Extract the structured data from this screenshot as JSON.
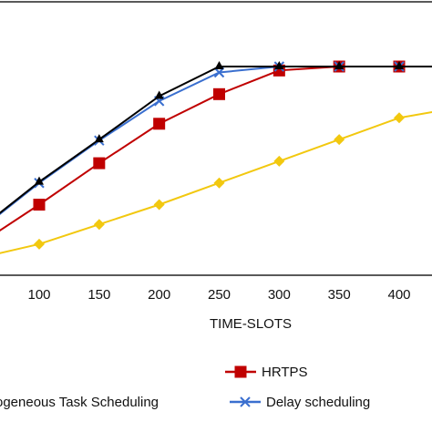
{
  "chart_data": {
    "type": "line",
    "xlabel": "TIME-SLOTS",
    "ylabel": "",
    "title": "",
    "xlim": [
      50,
      475
    ],
    "ylim": [
      0.0,
      1.0
    ],
    "x_ticks": [
      100,
      150,
      200,
      250,
      300,
      350,
      400
    ],
    "grid": false,
    "legend_placement": "bottom",
    "series": [
      {
        "name": "",
        "color": "#000000",
        "marker": "none",
        "x": [
          50,
          100,
          150,
          200,
          250,
          300,
          350,
          400,
          475
        ],
        "y": [
          0.145,
          0.385,
          0.6,
          0.82,
          0.97,
          0.97,
          0.97,
          0.97,
          0.97
        ]
      },
      {
        "name": "Delay scheduling",
        "color": "#3a6fcf",
        "marker": "x",
        "x": [
          50,
          100,
          150,
          200,
          250,
          300,
          350,
          400,
          475
        ],
        "y": [
          0.14,
          0.38,
          0.595,
          0.795,
          0.94,
          0.97,
          0.97,
          0.97,
          0.97
        ]
      },
      {
        "name": "HRTPS",
        "color": "#c00000",
        "marker": "square",
        "x": [
          50,
          100,
          150,
          200,
          250,
          300,
          350,
          400,
          475
        ],
        "y": [
          0.07,
          0.27,
          0.48,
          0.68,
          0.83,
          0.95,
          0.97,
          0.97,
          0.97
        ]
      },
      {
        "name": "Heterogeneous Task Scheduling",
        "color": "#f2c80f",
        "marker": "diamond",
        "x": [
          50,
          100,
          150,
          200,
          250,
          300,
          350,
          400,
          475
        ],
        "y": [
          0.0,
          0.07,
          0.17,
          0.27,
          0.38,
          0.49,
          0.6,
          0.71,
          0.79
        ]
      }
    ],
    "legend": [
      {
        "label": "HRTPS",
        "series_index": 2
      },
      {
        "label": "rogeneous Task Scheduling",
        "series_index": 3
      },
      {
        "label": "Delay scheduling",
        "series_index": 1
      }
    ]
  }
}
